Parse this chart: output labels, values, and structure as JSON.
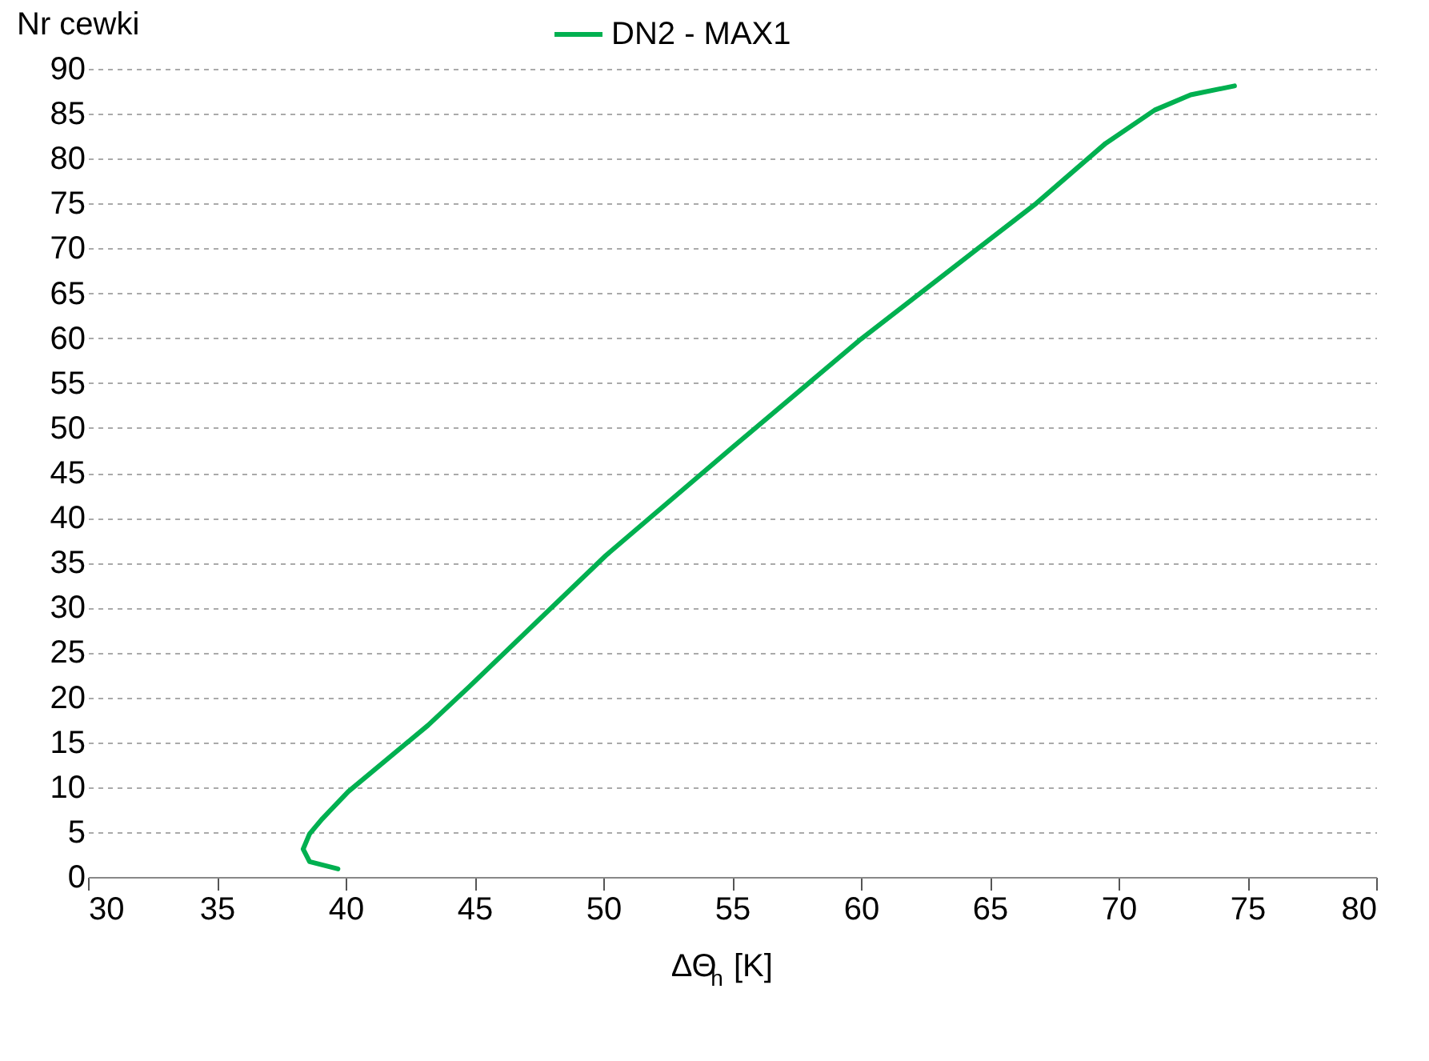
{
  "chart_data": {
    "type": "line",
    "xlabel": "ΔΘ$_{h}$ [K]",
    "ylabel": "Nr cewki",
    "series": [
      {
        "name": "DN2 - MAX1",
        "color": "#00b050",
        "x": [
          39.7,
          38.6,
          38.35,
          38.6,
          39.1,
          40.1,
          43.2,
          44.8,
          50.1,
          55,
          60,
          65,
          66.8,
          69.5,
          71.4,
          72.8,
          74.5
        ],
        "values": [
          0.9,
          1.7,
          3.1,
          4.8,
          6.5,
          9.5,
          16.9,
          21.2,
          35.8,
          47.8,
          59.9,
          71,
          75,
          81.7,
          85.4,
          87.1,
          88.1
        ]
      }
    ],
    "xlim": [
      30,
      80
    ],
    "xticks": [
      30,
      35,
      40,
      45,
      50,
      55,
      60,
      65,
      70,
      75,
      80
    ],
    "ylim": [
      0,
      90
    ],
    "yticks": [
      0,
      5,
      10,
      15,
      20,
      25,
      30,
      35,
      40,
      45,
      50,
      55,
      60,
      65,
      70,
      75,
      80,
      85,
      90
    ],
    "grid": "y",
    "legend": "top",
    "line_style": "solid",
    "marker": "none"
  }
}
